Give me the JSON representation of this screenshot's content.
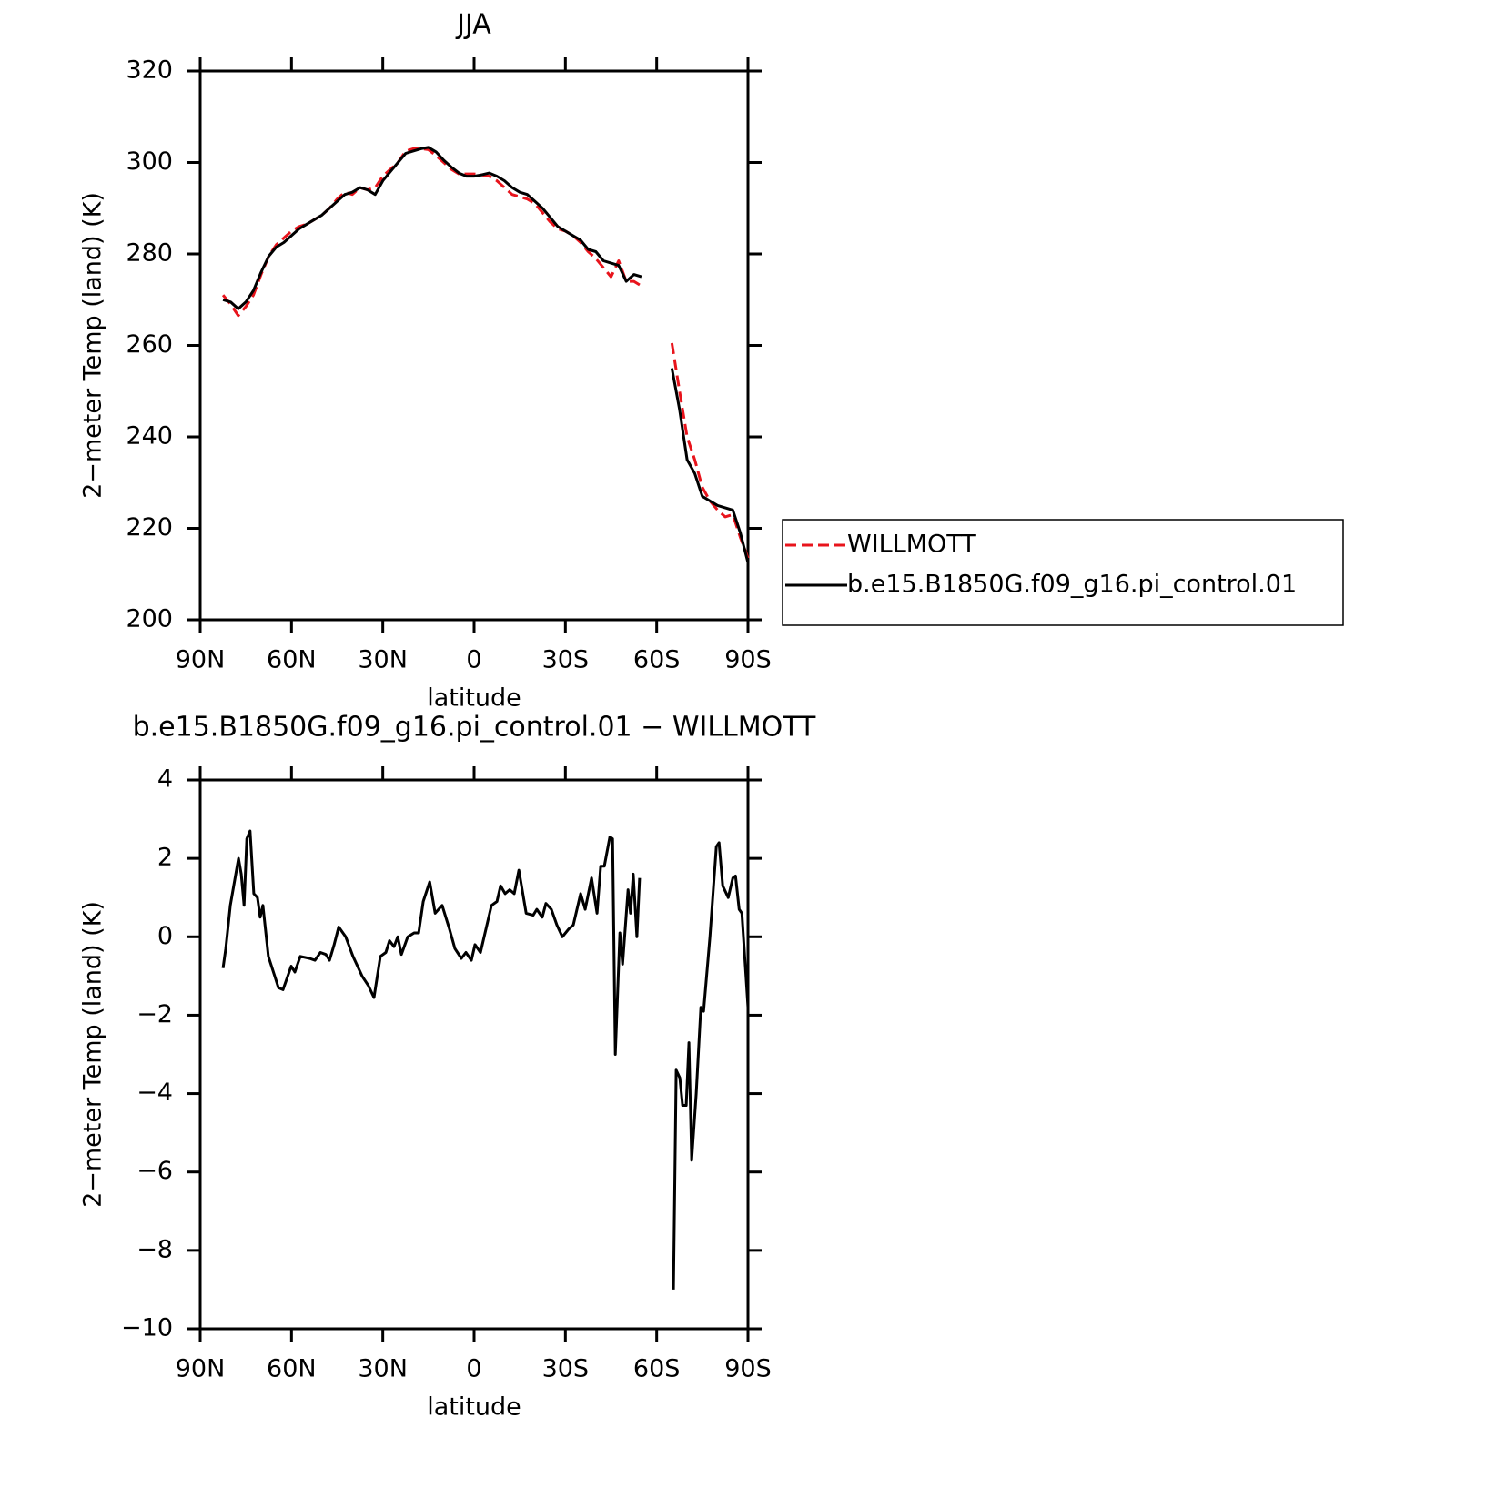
{
  "chart_data": [
    {
      "type": "line",
      "title": "JJA",
      "xlabel": "latitude",
      "ylabel": "2−meter Temp (land) (K)",
      "xlim": [
        90,
        -90
      ],
      "xticks": [
        {
          "value": 90,
          "label": "90N"
        },
        {
          "value": 60,
          "label": "60N"
        },
        {
          "value": 30,
          "label": "30N"
        },
        0,
        {
          "value": -30,
          "label": "30S"
        },
        {
          "value": -60,
          "label": "60S"
        },
        {
          "value": -90,
          "label": "90S"
        }
      ],
      "ylim": [
        200,
        320
      ],
      "yticks": [
        200,
        220,
        240,
        260,
        280,
        300,
        320
      ],
      "legend": "right",
      "x": [
        82.5,
        80,
        77.5,
        75,
        72.5,
        70,
        67.5,
        65,
        62.5,
        60,
        57.5,
        55,
        52.5,
        50,
        47.5,
        45,
        42.5,
        40,
        37.5,
        35,
        32.5,
        30,
        27.5,
        25,
        22.5,
        20,
        17.5,
        15,
        12.5,
        10,
        7.5,
        5,
        2.5,
        0,
        -2.5,
        -5,
        -7.5,
        -10,
        -12.5,
        -15,
        -17.5,
        -20,
        -22.5,
        -25,
        -27.5,
        -30,
        -32.5,
        -35,
        -37.5,
        -40,
        -42.5,
        -45,
        -47.5,
        -50,
        -52.5,
        -55,
        -57.5,
        -60,
        -62.5,
        -65,
        -67.5,
        -70,
        -72.5,
        -75,
        -77.5,
        -80,
        -82.5,
        -85,
        -87.5,
        -90
      ],
      "series": [
        {
          "name": "WILLMOTT",
          "color": "#e8141c",
          "dashed": true,
          "values": [
            271,
            269,
            266.5,
            268.5,
            271,
            275.5,
            279.5,
            282,
            283.5,
            285,
            286,
            286.5,
            287.5,
            288.5,
            290,
            292,
            293.5,
            293,
            294.5,
            294,
            294.5,
            297,
            298.5,
            300,
            302.5,
            303,
            303,
            302.8,
            301.5,
            300,
            298.5,
            297.5,
            297.5,
            297.5,
            297.3,
            297,
            296,
            294.5,
            293,
            292.5,
            292,
            291,
            289,
            287,
            285.5,
            285,
            284,
            282.5,
            280.5,
            279,
            277,
            275,
            278.5,
            274,
            274,
            273,
            null,
            null,
            null,
            260.5,
            250,
            240,
            235,
            229,
            226,
            224,
            222.5,
            223,
            218,
            213.5
          ]
        },
        {
          "name": "b.e15.B1850G.f09_g16.pi_control.01",
          "color": "#000000",
          "dashed": false,
          "values": [
            270,
            269.5,
            268,
            269.5,
            272,
            276,
            279.5,
            281.5,
            282.5,
            284,
            285.5,
            286.5,
            287.5,
            288.5,
            290,
            291.5,
            293,
            293.5,
            294.5,
            294,
            293,
            296,
            298,
            300,
            302,
            302.5,
            303,
            303.3,
            302.3,
            300.5,
            299,
            297.7,
            297,
            297,
            297.3,
            297.7,
            297,
            296,
            294.5,
            293.5,
            293,
            291.5,
            290,
            288,
            286,
            285,
            284,
            283,
            281,
            280.5,
            278.5,
            278,
            277.5,
            274,
            275.5,
            275,
            null,
            null,
            null,
            255,
            246,
            235,
            232,
            227,
            226,
            225,
            224.5,
            224,
            219,
            212.5
          ]
        }
      ]
    },
    {
      "type": "line",
      "title": "b.e15.B1850G.f09_g16.pi_control.01 − WILLMOTT",
      "xlabel": "latitude",
      "ylabel": "2−meter Temp (land) (K)",
      "xlim": [
        90,
        -90
      ],
      "xticks": [
        {
          "value": 90,
          "label": "90N"
        },
        {
          "value": 60,
          "label": "60N"
        },
        {
          "value": 30,
          "label": "30N"
        },
        0,
        {
          "value": -30,
          "label": "30S"
        },
        {
          "value": -60,
          "label": "60S"
        },
        {
          "value": -90,
          "label": "90S"
        }
      ],
      "ylim": [
        -10,
        4
      ],
      "yticks": [
        {
          "value": -10,
          "label": "−10"
        },
        {
          "value": -8,
          "label": "−8"
        },
        {
          "value": -6,
          "label": "−6"
        },
        {
          "value": -4,
          "label": "−4"
        },
        {
          "value": -2,
          "label": "−2"
        },
        0,
        2,
        4
      ],
      "x": [
        82.5,
        81.6,
        80.1,
        77.4,
        76.5,
        75.6,
        74.7,
        73.6,
        72.4,
        71.2,
        70.3,
        69.4,
        67.6,
        65.5,
        64.3,
        62.8,
        60.1,
        58.9,
        57.1,
        54.1,
        52.3,
        50.5,
        48.7,
        47.5,
        46.0,
        44.5,
        42.2,
        39.8,
        36.8,
        34.7,
        32.9,
        30.8,
        29.0,
        27.8,
        26.3,
        25.1,
        23.9,
        21.8,
        19.7,
        18.2,
        16.7,
        14.6,
        12.8,
        10.5,
        8.1,
        6.3,
        4.2,
        2.7,
        0.9,
        -0.3,
        -2.1,
        -5.7,
        -7.5,
        -8.7,
        -10.2,
        -11.7,
        -13.2,
        -14.7,
        -17.1,
        -19.4,
        -20.6,
        -22.4,
        -23.6,
        -25.4,
        -27.2,
        -29.0,
        -31.1,
        -32.6,
        -35.0,
        -36.5,
        -38.6,
        -40.4,
        -41.6,
        -42.8,
        -44.6,
        -45.5,
        -46.4,
        -47.9,
        -48.8,
        -50.6,
        -51.4,
        -52.3,
        -53.5,
        -54.4,
        -60,
        -65.5,
        -66.4,
        -67.6,
        -68.5,
        -69.7,
        -70.6,
        -71.5,
        -73.0,
        -74.5,
        -75.4,
        -77.5,
        -79.6,
        -80.5,
        -81.7,
        -83.5,
        -85.0,
        -85.9,
        -87.1,
        -88.0,
        -90.0
      ],
      "color": "#000000",
      "values": [
        -0.8,
        -0.3,
        0.8,
        2.0,
        1.6,
        0.8,
        2.5,
        2.7,
        1.1,
        1.0,
        0.5,
        0.8,
        -0.5,
        -1.0,
        -1.3,
        -1.35,
        -0.75,
        -0.9,
        -0.5,
        -0.55,
        -0.6,
        -0.4,
        -0.45,
        -0.6,
        -0.2,
        0.25,
        0.0,
        -0.5,
        -1.0,
        -1.25,
        -1.55,
        -0.5,
        -0.4,
        -0.1,
        -0.25,
        0.0,
        -0.45,
        0.0,
        0.1,
        0.1,
        0.9,
        1.4,
        0.6,
        0.8,
        0.2,
        -0.3,
        -0.55,
        -0.4,
        -0.6,
        -0.2,
        -0.4,
        0.8,
        0.9,
        1.3,
        1.1,
        1.2,
        1.1,
        1.7,
        0.6,
        0.55,
        0.7,
        0.5,
        0.85,
        0.7,
        0.3,
        0.0,
        0.2,
        0.3,
        1.1,
        0.7,
        1.5,
        0.6,
        1.8,
        1.8,
        2.55,
        2.5,
        -3.0,
        0.1,
        -0.7,
        1.2,
        0.6,
        1.6,
        0.0,
        1.5,
        null,
        -9.0,
        -3.4,
        -3.6,
        -4.3,
        -4.3,
        -2.7,
        -5.7,
        -4.0,
        -1.8,
        -1.9,
        0.0,
        2.3,
        2.4,
        1.3,
        1.0,
        1.5,
        1.55,
        0.7,
        0.6,
        -1.8
      ]
    }
  ]
}
